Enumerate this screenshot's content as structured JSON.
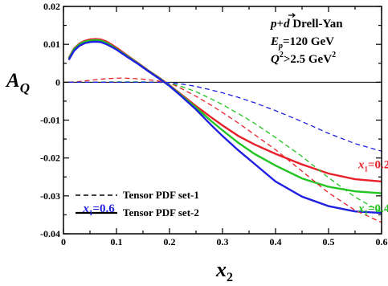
{
  "chart_data": {
    "type": "line",
    "title": "",
    "xlabel": "x",
    "xlabel_sub": "2",
    "ylabel": "A",
    "ylabel_sub": "Q",
    "xlim": [
      0,
      0.6
    ],
    "ylim": [
      -0.04,
      0.02
    ],
    "x_ticks": [
      {
        "value": 0,
        "label": "0"
      },
      {
        "value": 0.1,
        "label": "0.1"
      },
      {
        "value": 0.2,
        "label": "0.2"
      },
      {
        "value": 0.3,
        "label": "0.3"
      },
      {
        "value": 0.4,
        "label": "0.4"
      },
      {
        "value": 0.5,
        "label": "0.5"
      },
      {
        "value": 0.6,
        "label": "0.6"
      }
    ],
    "y_ticks": [
      {
        "value": 0.02,
        "label": "0.02"
      },
      {
        "value": 0.01,
        "label": "0.01"
      },
      {
        "value": 0,
        "label": "0"
      },
      {
        "value": -0.01,
        "label": "-0.01"
      },
      {
        "value": -0.02,
        "label": "-0.02"
      },
      {
        "value": -0.03,
        "label": "-0.03"
      },
      {
        "value": -0.04,
        "label": "-0.04"
      }
    ],
    "grid": false,
    "zero_line": true,
    "annotation_lines": [
      {
        "parts": [
          {
            "t": "p",
            "i": true
          },
          {
            "t": "+"
          },
          {
            "t": "d",
            "i": true,
            "vec": true
          },
          {
            "t": " Drell-Yan"
          }
        ]
      },
      {
        "parts": [
          {
            "t": "E",
            "i": true
          },
          {
            "t": "p",
            "i": true,
            "sub": true
          },
          {
            "t": "=120 GeV"
          }
        ]
      },
      {
        "parts": [
          {
            "t": "Q",
            "i": true
          },
          {
            "t": "2",
            "sup": true
          },
          {
            "t": ">2.5 GeV"
          },
          {
            "t": "2",
            "sup": true
          }
        ]
      }
    ],
    "legend": [
      {
        "label": "Tensor PDF set-1",
        "style": "dashed"
      },
      {
        "label": "Tensor PDF set-2",
        "style": "solid"
      }
    ],
    "curve_labels": [
      {
        "var": "x",
        "sub": "1",
        "text": "=0.2",
        "color": "#e8202a",
        "at": [
          0.556,
          -0.0227
        ]
      },
      {
        "var": "x",
        "sub": "1",
        "text": "=0.4",
        "color": "#22c422",
        "at": [
          0.556,
          -0.0343
        ]
      },
      {
        "var": "x",
        "sub": "1",
        "text": "=0.6",
        "color": "#1f1fe0",
        "at": [
          0.037,
          -0.0343
        ]
      }
    ],
    "series": [
      {
        "color": "#e8202a",
        "style": "solid",
        "x": [
          0.01,
          0.02,
          0.03,
          0.04,
          0.05,
          0.06,
          0.07,
          0.08,
          0.09,
          0.1,
          0.12,
          0.14,
          0.16,
          0.18,
          0.2,
          0.22,
          0.25,
          0.28,
          0.3,
          0.33,
          0.36,
          0.4,
          0.45,
          0.5,
          0.55,
          0.6
        ],
        "y": [
          0.0064,
          0.0089,
          0.0102,
          0.0109,
          0.0113,
          0.0114,
          0.0113,
          0.0108,
          0.01,
          0.0091,
          0.0071,
          0.0051,
          0.0031,
          0.0012,
          -0.0008,
          -0.003,
          -0.0063,
          -0.0094,
          -0.0114,
          -0.0142,
          -0.0164,
          -0.0189,
          -0.0217,
          -0.0241,
          -0.0256,
          -0.0262
        ]
      },
      {
        "color": "#22c422",
        "style": "solid",
        "x": [
          0.01,
          0.02,
          0.03,
          0.04,
          0.05,
          0.06,
          0.07,
          0.08,
          0.09,
          0.1,
          0.12,
          0.14,
          0.16,
          0.18,
          0.2,
          0.22,
          0.25,
          0.28,
          0.3,
          0.33,
          0.36,
          0.4,
          0.45,
          0.5,
          0.55,
          0.6
        ],
        "y": [
          0.0062,
          0.0087,
          0.01,
          0.0107,
          0.011,
          0.0111,
          0.011,
          0.0105,
          0.0097,
          0.0088,
          0.0069,
          0.005,
          0.003,
          0.0011,
          -0.0009,
          -0.0032,
          -0.0067,
          -0.0104,
          -0.0127,
          -0.016,
          -0.0189,
          -0.022,
          -0.0254,
          -0.0276,
          -0.0288,
          -0.0293
        ]
      },
      {
        "color": "#1f1fe0",
        "style": "solid",
        "x": [
          0.01,
          0.02,
          0.03,
          0.04,
          0.05,
          0.06,
          0.07,
          0.08,
          0.09,
          0.1,
          0.12,
          0.14,
          0.16,
          0.18,
          0.2,
          0.22,
          0.25,
          0.28,
          0.3,
          0.33,
          0.36,
          0.4,
          0.45,
          0.5,
          0.55,
          0.6
        ],
        "y": [
          0.0059,
          0.0083,
          0.0096,
          0.0103,
          0.0106,
          0.0107,
          0.0106,
          0.0101,
          0.0094,
          0.0086,
          0.0067,
          0.0049,
          0.0029,
          0.001,
          -0.001,
          -0.0034,
          -0.0072,
          -0.0115,
          -0.0142,
          -0.018,
          -0.0215,
          -0.0262,
          -0.0302,
          -0.0327,
          -0.0341,
          -0.0345
        ]
      },
      {
        "color": "#e8202a",
        "style": "dashed",
        "x": [
          0.01,
          0.03,
          0.05,
          0.07,
          0.09,
          0.11,
          0.13,
          0.15,
          0.17,
          0.19,
          0.2,
          0.22,
          0.25,
          0.28,
          0.3,
          0.33,
          0.36,
          0.4,
          0.45,
          0.5,
          0.55,
          0.6
        ],
        "y": [
          0.0,
          0.0002,
          0.0005,
          0.0008,
          0.001,
          0.0011,
          0.001,
          0.0008,
          0.0005,
          0.0001,
          -0.0002,
          -0.0015,
          -0.0037,
          -0.0062,
          -0.008,
          -0.0108,
          -0.0138,
          -0.0178,
          -0.0235,
          -0.0292,
          -0.0338,
          -0.037
        ]
      },
      {
        "color": "#22c422",
        "style": "dashed",
        "x": [
          0.01,
          0.05,
          0.1,
          0.15,
          0.18,
          0.2,
          0.22,
          0.25,
          0.28,
          0.3,
          0.33,
          0.36,
          0.4,
          0.45,
          0.5,
          0.55,
          0.6
        ],
        "y": [
          0.0,
          0.0,
          0.0001,
          0.0001,
          0.0,
          -0.0002,
          -0.001,
          -0.0025,
          -0.0045,
          -0.0059,
          -0.0083,
          -0.0108,
          -0.0146,
          -0.0196,
          -0.0252,
          -0.0303,
          -0.0343
        ]
      },
      {
        "color": "#1f1fe0",
        "style": "dashed",
        "x": [
          0.01,
          0.05,
          0.1,
          0.15,
          0.18,
          0.2,
          0.22,
          0.25,
          0.28,
          0.3,
          0.33,
          0.36,
          0.4,
          0.45,
          0.5,
          0.55,
          0.6
        ],
        "y": [
          0.0,
          0.0,
          0.0,
          0.0,
          0.0,
          -0.0001,
          -0.0004,
          -0.0011,
          -0.0021,
          -0.0028,
          -0.004,
          -0.0054,
          -0.0075,
          -0.0104,
          -0.0135,
          -0.0162,
          -0.0182
        ]
      }
    ]
  }
}
